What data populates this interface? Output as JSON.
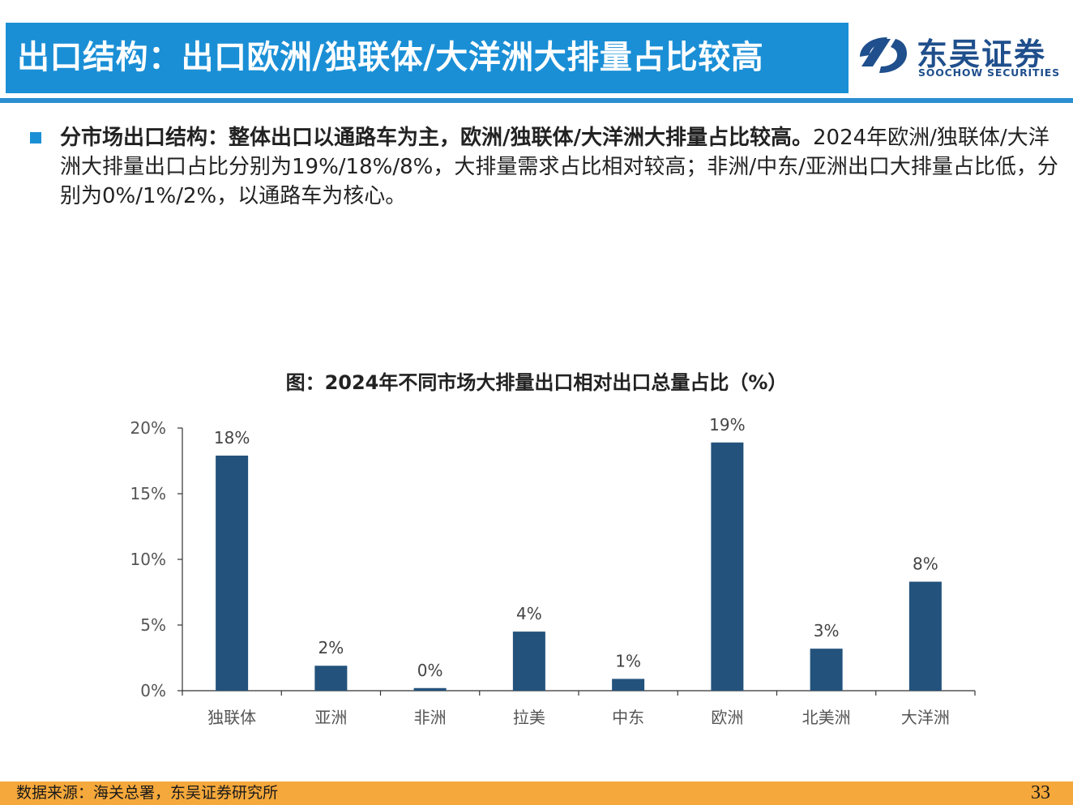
{
  "header": {
    "title": "出口结构：出口欧洲/独联体/大洋洲大排量占比较高",
    "logo_cn": "东吴证券",
    "logo_en": "SOOCHOW SECURITIES",
    "logo_icon": "soochow-logo-icon",
    "accent_color": "#1a8fd6"
  },
  "body": {
    "bold_text": "分市场出口结构：整体出口以通路车为主，欧洲/独联体/大洋洲大排量占比较高。",
    "normal_text": "2024年欧洲/独联体/大洋洲大排量出口占比分别为19%/18%/8%，大排量需求占比相对较高；非洲/中东/亚洲出口大排量占比低，分别为0%/1%/2%，以通路车为核心。"
  },
  "chart_title": "图：2024年不同市场大排量出口相对出口总量占比（%）",
  "chart_data": {
    "type": "bar",
    "categories": [
      "独联体",
      "亚洲",
      "非洲",
      "拉美",
      "中东",
      "欧洲",
      "北美洲",
      "大洋洲"
    ],
    "values": [
      17.9,
      1.9,
      0.2,
      4.5,
      0.9,
      18.9,
      3.2,
      8.3
    ],
    "data_labels": [
      "18%",
      "2%",
      "0%",
      "4%",
      "1%",
      "19%",
      "3%",
      "8%"
    ],
    "yticks": [
      "0%",
      "5%",
      "10%",
      "15%",
      "20%"
    ],
    "ylim": [
      0,
      20
    ],
    "bar_color": "#23527c",
    "grid": false
  },
  "footer": {
    "source": "数据来源：海关总署，东吴证券研究所",
    "page": "33",
    "color": "#f5a83b"
  }
}
